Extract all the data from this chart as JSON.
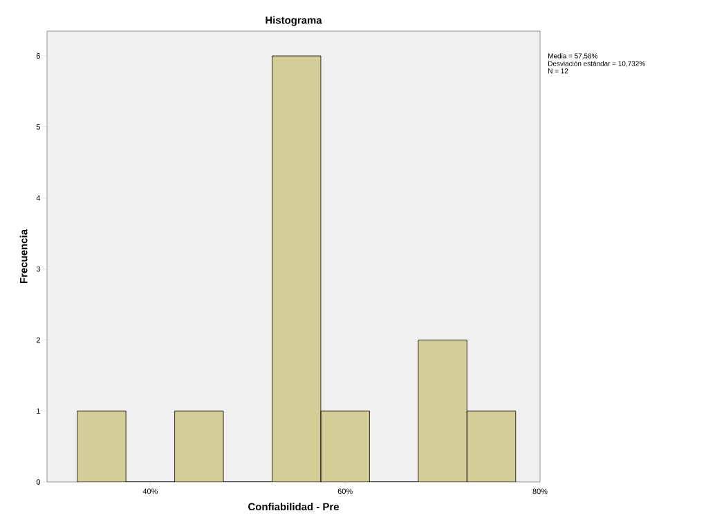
{
  "chart_data": {
    "type": "histogram",
    "title": "Histograma",
    "xlabel": "Confiabilidad - Pre",
    "ylabel": "Frecuencia",
    "bins": [
      32.5,
      37.5,
      42.5,
      47.5,
      52.5,
      57.5,
      62.5,
      67.5,
      72.5,
      77.5
    ],
    "values": [
      1,
      0,
      1,
      0,
      6,
      1,
      0,
      2,
      1
    ],
    "color": "#d3ce97",
    "xlim": [
      29.4,
      80
    ],
    "xticks": [
      {
        "value": 40,
        "label": "40%"
      },
      {
        "value": 60,
        "label": "60%"
      },
      {
        "value": 80,
        "label": "80%"
      }
    ],
    "ylim": [
      0,
      6.35
    ],
    "yticks": [
      0,
      1,
      2,
      3,
      4,
      5,
      6
    ],
    "grid": false,
    "annotations": [
      "Media = 57,58%",
      "Desviación estándar = 10,732%",
      "N = 12"
    ]
  }
}
